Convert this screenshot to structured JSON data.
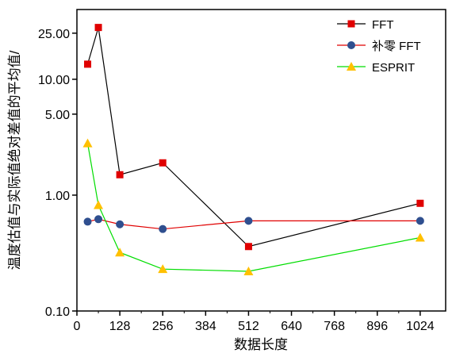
{
  "chart_data": {
    "type": "line",
    "xlabel": "数据长度",
    "ylabel": "温度估值与实际值绝对差值的平均值/",
    "x_scale": "linear",
    "y_scale": "log",
    "xlim": [
      0,
      1100
    ],
    "ylim": [
      0.1,
      40
    ],
    "x_ticks": [
      0,
      128,
      256,
      384,
      512,
      640,
      768,
      896,
      1024
    ],
    "y_ticks": [
      0.1,
      1.0,
      5.0,
      10.0,
      25.0
    ],
    "x_tick_labels": [
      "0",
      "128",
      "256",
      "384",
      "512",
      "640",
      "768",
      "896",
      "1024"
    ],
    "y_tick_labels": [
      "0.10",
      "1.00",
      "5.00",
      "10.00",
      "25.00"
    ],
    "grid": false,
    "legend_position": "top-right",
    "series": [
      {
        "name": "FFT",
        "color": "#000000",
        "marker": "square",
        "marker_color": "#e00000",
        "x": [
          32,
          64,
          128,
          256,
          512,
          1024
        ],
        "y": [
          13.5,
          28.0,
          1.5,
          1.9,
          0.36,
          0.85
        ]
      },
      {
        "name": "补零 FFT",
        "color": "#e00000",
        "marker": "circle",
        "marker_color": "#2f4f8f",
        "x": [
          32,
          64,
          128,
          256,
          512,
          1024
        ],
        "y": [
          0.59,
          0.62,
          0.56,
          0.51,
          0.6,
          0.6
        ]
      },
      {
        "name": "ESPRIT",
        "color": "#00dd00",
        "marker": "triangle",
        "marker_color": "#ffc000",
        "x": [
          32,
          64,
          128,
          256,
          512,
          1024
        ],
        "y": [
          2.8,
          0.82,
          0.32,
          0.23,
          0.22,
          0.43
        ]
      }
    ]
  }
}
